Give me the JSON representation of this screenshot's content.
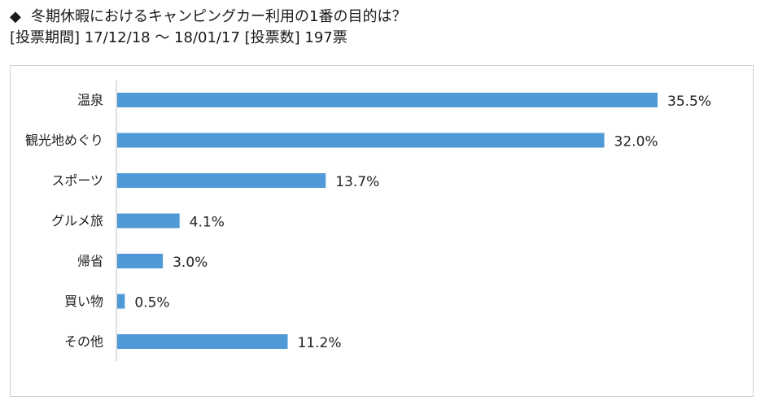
{
  "header": {
    "marker": "◆",
    "title": "冬期休暇におけるキャンピングカー利用の1番の目的は？",
    "subtitle": "[投票期間] 17/12/18 〜 18/01/17 [投票数] 197票"
  },
  "chart_data": {
    "type": "bar",
    "orientation": "horizontal",
    "title": "冬期休暇におけるキャンピングカー利用の1番の目的は？",
    "xlabel": "",
    "ylabel": "",
    "xlim": [
      0,
      40
    ],
    "grid": false,
    "legend": "none",
    "unit": "%",
    "bar_color": "#4f9ad6",
    "categories": [
      "温泉",
      "観光地めぐり",
      "スポーツ",
      "グルメ旅",
      "帰省",
      "買い物",
      "その他"
    ],
    "values": [
      35.5,
      32.0,
      13.7,
      4.1,
      3.0,
      0.5,
      11.2
    ],
    "value_labels": [
      "35.5%",
      "32.0%",
      "13.7%",
      "4.1%",
      "3.0%",
      "0.5%",
      "11.2%"
    ]
  }
}
